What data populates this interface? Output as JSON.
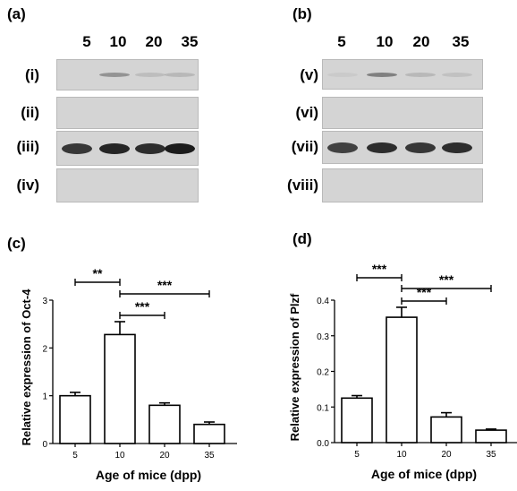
{
  "panels": {
    "a": "(a)",
    "b": "(b)",
    "c": "(c)",
    "d": "(d)"
  },
  "lanes": [
    "5",
    "10",
    "20",
    "35"
  ],
  "rows_left": [
    "(i)",
    "(ii)",
    "(iii)",
    "(iv)"
  ],
  "rows_right": [
    "(v)",
    "(vi)",
    "(vii)",
    "(viii)"
  ],
  "blots": {
    "left": [
      {
        "intensity": [
          0.0,
          0.35,
          0.12,
          0.15
        ]
      },
      {
        "intensity": [
          0.0,
          0.0,
          0.0,
          0.0
        ]
      },
      {
        "intensity": [
          0.85,
          0.95,
          0.9,
          1.0
        ]
      },
      {
        "intensity": [
          0.0,
          0.0,
          0.0,
          0.0
        ]
      }
    ],
    "right": [
      {
        "intensity": [
          0.05,
          0.45,
          0.15,
          0.1
        ]
      },
      {
        "intensity": [
          0.0,
          0.0,
          0.0,
          0.0
        ]
      },
      {
        "intensity": [
          0.8,
          0.9,
          0.85,
          0.9
        ]
      },
      {
        "intensity": [
          0.0,
          0.0,
          0.0,
          0.0
        ]
      }
    ]
  },
  "chart_data": [
    {
      "type": "bar",
      "categories": [
        "5",
        "10",
        "20",
        "35"
      ],
      "values": [
        1.0,
        2.28,
        0.8,
        0.4
      ],
      "errors": [
        0.07,
        0.27,
        0.05,
        0.05
      ],
      "ylabel": "Relative expression of Oct-4",
      "xlabel": "Age of mice (dpp)",
      "ylim": [
        0,
        3
      ],
      "yticks": [
        "0",
        "1",
        "2",
        "3"
      ],
      "significance": [
        {
          "from": "5",
          "to": "10",
          "label": "**"
        },
        {
          "from": "10",
          "to": "35",
          "label": "***"
        },
        {
          "from": "10",
          "to": "20",
          "label": "***"
        }
      ]
    },
    {
      "type": "bar",
      "categories": [
        "5",
        "10",
        "20",
        "35"
      ],
      "values": [
        0.125,
        0.352,
        0.072,
        0.035
      ],
      "errors": [
        0.007,
        0.028,
        0.012,
        0.003
      ],
      "ylabel": "Relative expression of Plzf",
      "xlabel": "Age of mice (dpp)",
      "ylim": [
        0,
        0.4
      ],
      "yticks": [
        "0.0",
        "0.1",
        "0.2",
        "0.3",
        "0.4"
      ],
      "significance": [
        {
          "from": "5",
          "to": "10",
          "label": "***"
        },
        {
          "from": "10",
          "to": "35",
          "label": "***"
        },
        {
          "from": "10",
          "to": "20",
          "label": "***"
        }
      ]
    }
  ]
}
